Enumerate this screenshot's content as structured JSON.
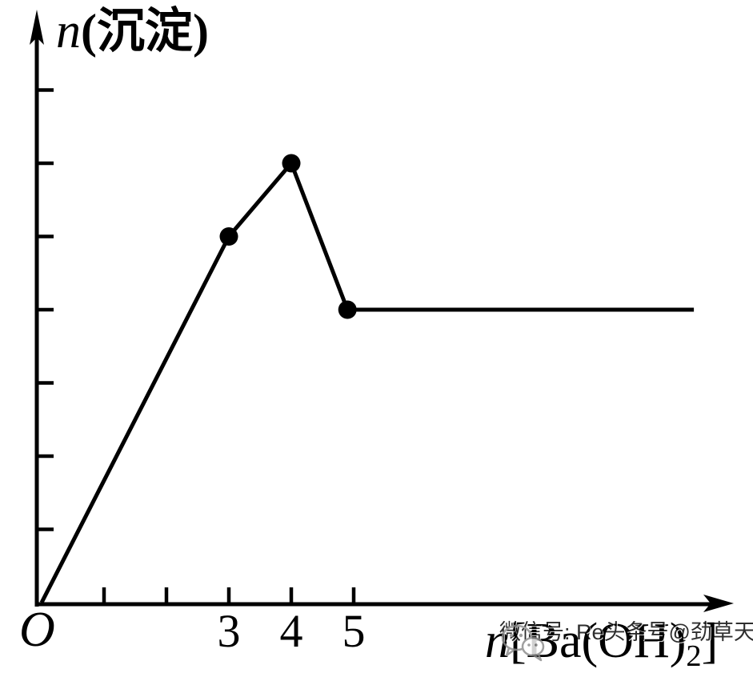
{
  "page": {
    "background": "#ffffff"
  },
  "colors": {
    "ink": "#000000",
    "background": "#ffffff",
    "watermark": "#8a8a8a"
  },
  "labels": {
    "y_var": "n",
    "y_rest": "(沉淀)",
    "x_var": "n",
    "x_pre": "[Ba(OH)",
    "x_sub": "2",
    "x_post": "]",
    "origin": "O"
  },
  "watermark": {
    "icon": "wechat-bubbles-icon",
    "text": "微信号: Re头条号@劲草天",
    "color": "#8a8a8a"
  },
  "chart_data": {
    "type": "line",
    "title": "",
    "xlabel": "n[Ba(OH)2]",
    "ylabel": "n(沉淀)",
    "origin_label": "O",
    "x_axis": {
      "tick_positions": [
        1,
        2,
        3,
        4,
        5
      ],
      "labeled_ticks": [
        {
          "value": 3,
          "label": "3"
        },
        {
          "value": 4,
          "label": "4"
        },
        {
          "value": 5,
          "label": "5"
        }
      ],
      "range": [
        0,
        11.2
      ]
    },
    "y_axis": {
      "tick_positions": [
        1,
        2,
        3,
        4,
        5,
        6,
        7
      ],
      "tick_labels": [],
      "range": [
        0,
        8.2
      ]
    },
    "series": [
      {
        "name": "precipitate-amount",
        "points": [
          [
            0,
            0
          ],
          [
            3,
            5
          ],
          [
            4,
            6
          ],
          [
            4.9,
            4
          ],
          [
            10.45,
            4
          ]
        ],
        "marked_points": [
          [
            3,
            5
          ],
          [
            4,
            6
          ],
          [
            4.9,
            4
          ]
        ]
      }
    ],
    "grid": false,
    "legend": false
  }
}
